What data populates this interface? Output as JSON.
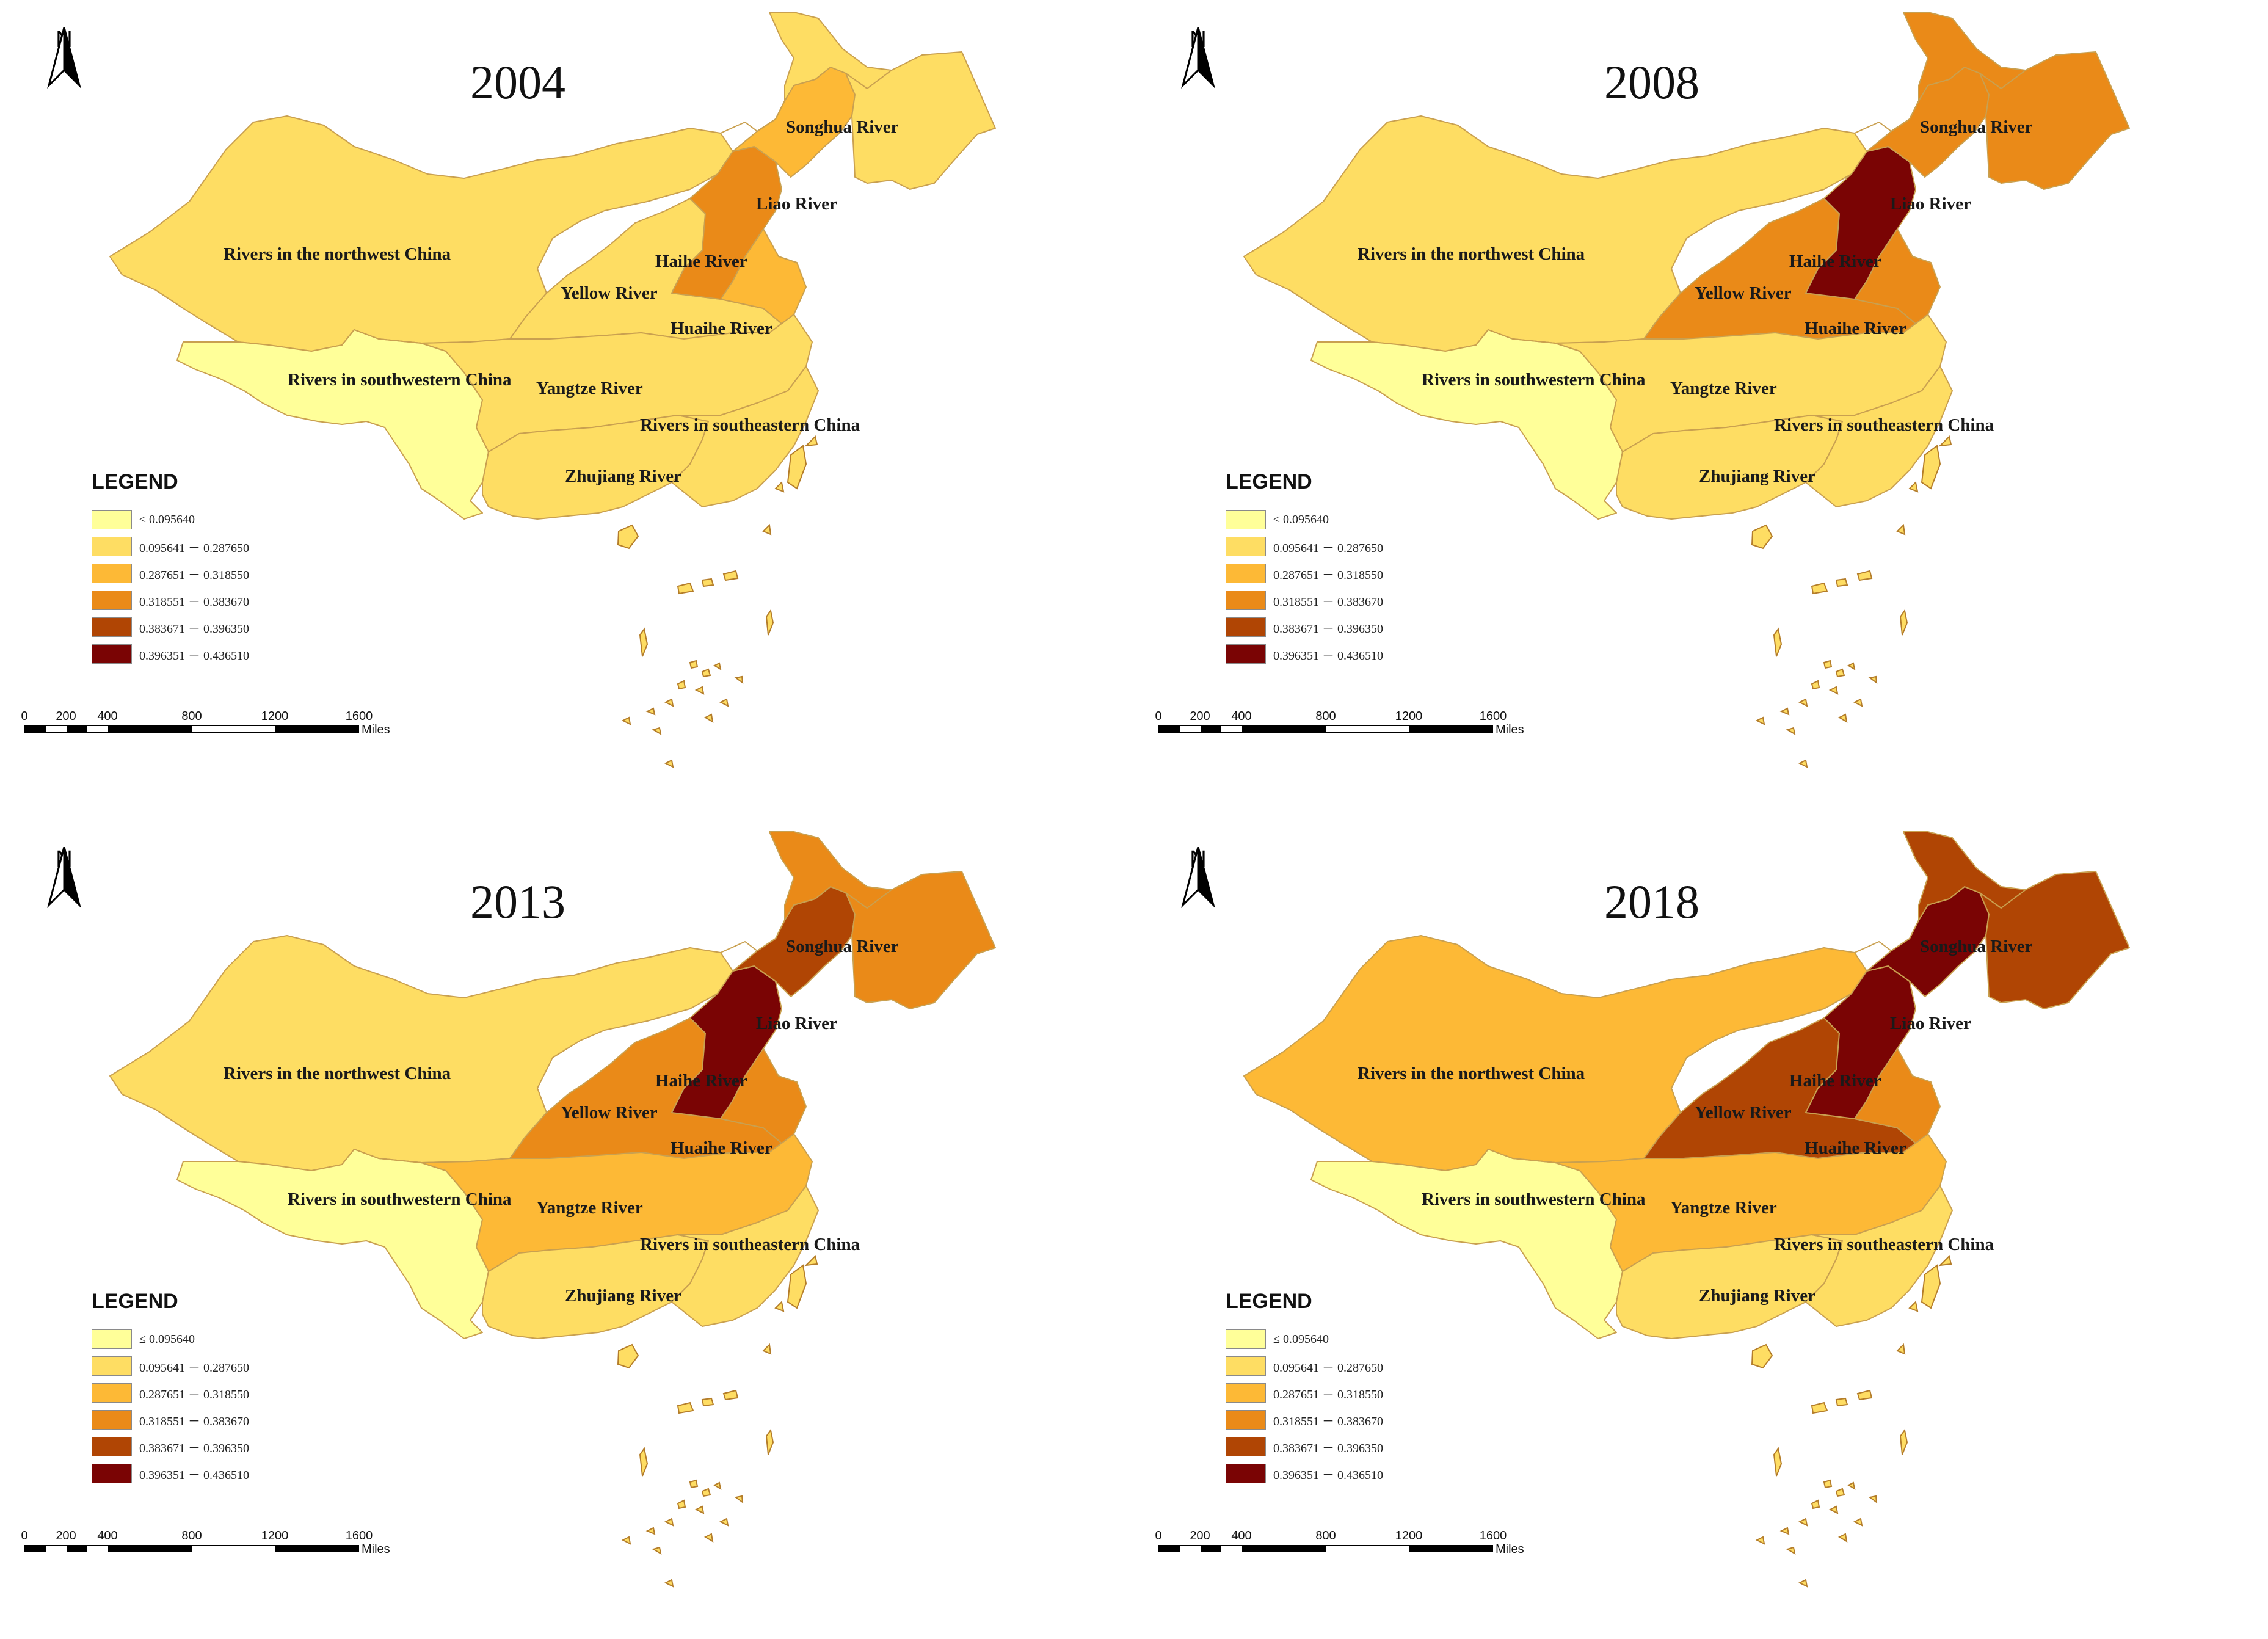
{
  "legend": {
    "title": "LEGEND",
    "classes": [
      {
        "label": "≤ 0.095640",
        "color": "#ffff99"
      },
      {
        "label": "0.095641 － 0.287650",
        "color": "#fedd63"
      },
      {
        "label": "0.287651 － 0.318550",
        "color": "#fdb936"
      },
      {
        "label": "0.318551 － 0.383670",
        "color": "#ea8a18"
      },
      {
        "label": "0.383671 － 0.396350",
        "color": "#b04504"
      },
      {
        "label": "0.396351 － 0.436510",
        "color": "#7a0404"
      }
    ]
  },
  "north_arrow": {
    "letter": "N"
  },
  "scale_bar": {
    "ticks": [
      "0",
      "200",
      "400",
      "800",
      "1200",
      "1600"
    ],
    "unit": "Miles"
  },
  "basins": [
    {
      "key": "songhua",
      "label": "Songhua River"
    },
    {
      "key": "liao",
      "label": "Liao River"
    },
    {
      "key": "northwest",
      "label": "Rivers in the northwest China"
    },
    {
      "key": "haihe",
      "label": "Haihe River"
    },
    {
      "key": "yellow",
      "label": "Yellow River"
    },
    {
      "key": "huaihe",
      "label": "Huaihe River"
    },
    {
      "key": "southwest",
      "label": "Rivers in southwestern China"
    },
    {
      "key": "yangtze",
      "label": "Yangtze River"
    },
    {
      "key": "southeast",
      "label": "Rivers in southeastern China"
    },
    {
      "key": "zhujiang",
      "label": "Zhujiang River"
    }
  ],
  "maps": [
    {
      "year": "2004",
      "classes": {
        "northwest": 1,
        "southwest": 0,
        "yellow": 1,
        "yangtze": 1,
        "zhujiang": 1,
        "southeast": 1,
        "huaihe": 2,
        "haihe": 3,
        "liao": 2,
        "songhua": 1
      }
    },
    {
      "year": "2008",
      "classes": {
        "northwest": 1,
        "southwest": 0,
        "yellow": 3,
        "yangtze": 1,
        "zhujiang": 1,
        "southeast": 1,
        "huaihe": 3,
        "haihe": 5,
        "liao": 3,
        "songhua": 3
      }
    },
    {
      "year": "2013",
      "classes": {
        "northwest": 1,
        "southwest": 0,
        "yellow": 3,
        "yangtze": 2,
        "zhujiang": 1,
        "southeast": 1,
        "huaihe": 3,
        "haihe": 5,
        "liao": 4,
        "songhua": 3
      }
    },
    {
      "year": "2018",
      "classes": {
        "northwest": 2,
        "southwest": 0,
        "yellow": 4,
        "yangtze": 2,
        "zhujiang": 1,
        "southeast": 1,
        "huaihe": 3,
        "haihe": 5,
        "liao": 5,
        "songhua": 4
      }
    }
  ]
}
